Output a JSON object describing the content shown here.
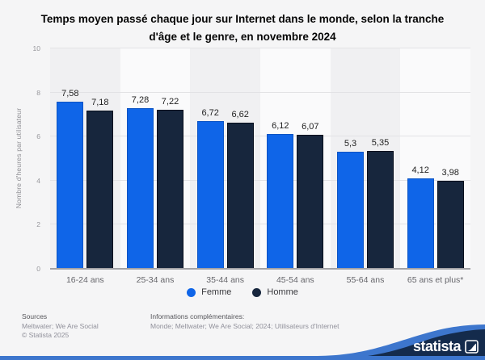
{
  "title": "Temps moyen passé chaque jour sur Internet dans le monde, selon la tranche d'âge et le genre, en novembre 2024",
  "chart_data": {
    "type": "bar",
    "title": "Temps moyen passé chaque jour sur Internet dans le monde, selon la tranche d'âge et le genre, en novembre 2024",
    "categories": [
      "16-24 ans",
      "25-34 ans",
      "35-44 ans",
      "45-54 ans",
      "55-64 ans",
      "65 ans et plus*"
    ],
    "series": [
      {
        "name": "Femme",
        "color": "#0f65e8",
        "border_color": "#0c54c4",
        "values": [
          7.58,
          7.28,
          6.72,
          6.12,
          5.3,
          4.12
        ],
        "labels": [
          "7,58",
          "7,28",
          "6,72",
          "6,12",
          "5,3",
          "4,12"
        ]
      },
      {
        "name": "Homme",
        "color": "#17263d",
        "border_color": "#070f1d",
        "values": [
          7.18,
          7.22,
          6.62,
          6.07,
          5.35,
          3.98
        ],
        "labels": [
          "7,18",
          "7,22",
          "6,62",
          "6,07",
          "5,35",
          "3,98"
        ]
      }
    ],
    "xlabel": "",
    "ylabel": "Nombre d'heures par utilisateur",
    "ylim": [
      0,
      10
    ],
    "yticks": [
      0,
      2,
      4,
      6,
      8,
      10
    ],
    "grid": true,
    "legend_position": "bottom"
  },
  "legend": {
    "items": [
      {
        "label": "Femme",
        "color": "#0f65e8"
      },
      {
        "label": "Homme",
        "color": "#17263d"
      }
    ]
  },
  "footer": {
    "sources_heading": "Sources",
    "sources_line": "Meltwater; We Are Social",
    "copyright": "© Statista 2025",
    "info_heading": "Informations complémentaires:",
    "info_line": "Monde; Meltwater; We Are Social; 2024; Utilisateurs d'Internet",
    "brand": "statista"
  },
  "colors": {
    "accent_blue": "#3d76cd",
    "brand_navy": "#142b4c",
    "femme_blue": "#0f65e8",
    "homme_navy": "#17263d"
  }
}
